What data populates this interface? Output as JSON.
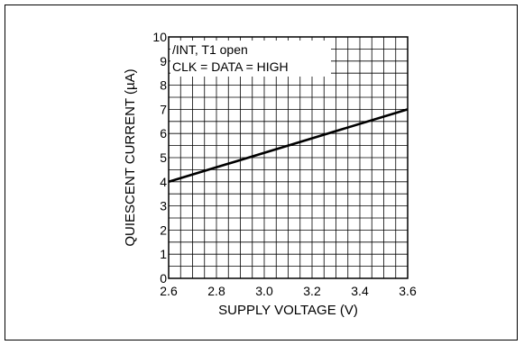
{
  "chart_data": {
    "type": "line",
    "xlabel": "SUPPLY VOLTAGE (V)",
    "ylabel": "QUIESCENT CURRENT (µA)",
    "xlim": [
      2.6,
      3.6
    ],
    "ylim": [
      0,
      10
    ],
    "x_ticks": [
      "2.6",
      "2.8",
      "3.0",
      "3.2",
      "3.4",
      "3.6"
    ],
    "y_ticks": [
      "0",
      "1",
      "2",
      "3",
      "4",
      "5",
      "6",
      "7",
      "8",
      "9",
      "10"
    ],
    "grid": true,
    "annotations": [
      "/INT, T1 open",
      "CLK = DATA = HIGH"
    ],
    "series": [
      {
        "x": [
          2.6,
          3.6
        ],
        "y": [
          4.0,
          7.0
        ]
      }
    ]
  }
}
